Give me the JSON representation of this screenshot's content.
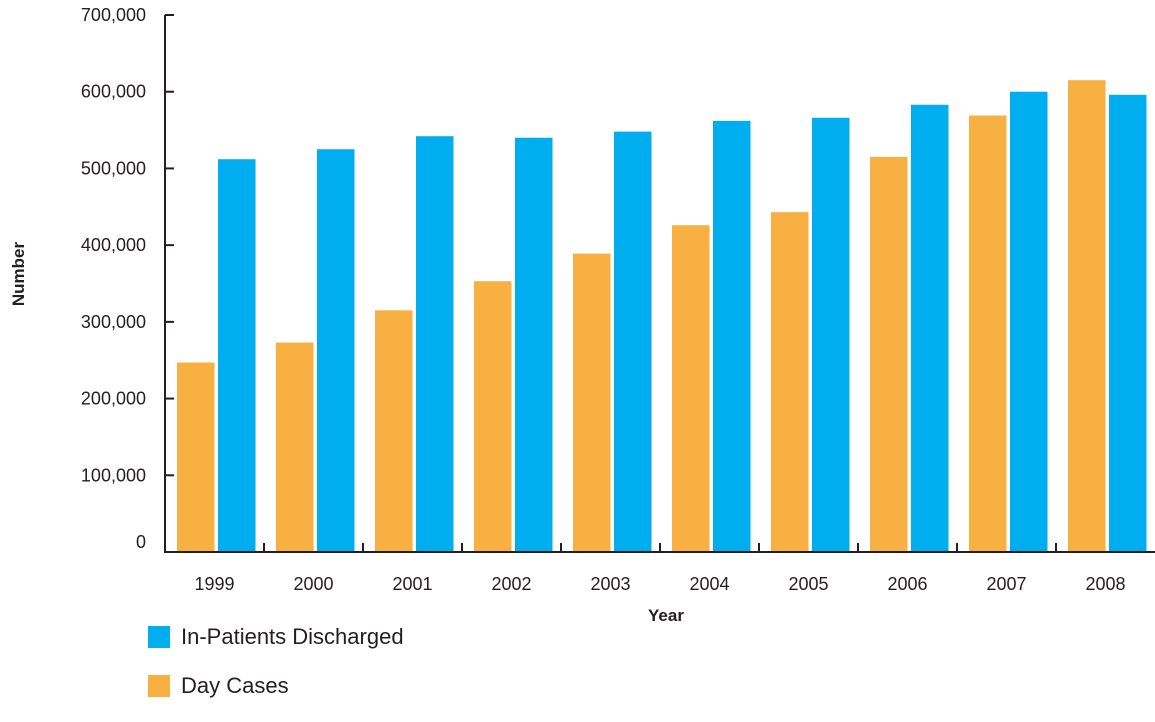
{
  "chart_data": {
    "type": "bar",
    "categories": [
      "1999",
      "2000",
      "2001",
      "2002",
      "2003",
      "2004",
      "2005",
      "2006",
      "2007",
      "2008"
    ],
    "series": [
      {
        "name": "Day Cases",
        "color": "#f9b042",
        "values": [
          247000,
          273000,
          315000,
          353000,
          389000,
          426000,
          443000,
          515000,
          569000,
          615000
        ]
      },
      {
        "name": "In-Patients Discharged",
        "color": "#00aeef",
        "values": [
          512000,
          525000,
          542000,
          540000,
          548000,
          562000,
          566000,
          583000,
          600000,
          596000
        ]
      }
    ],
    "xlabel": "Year",
    "ylabel": "Number",
    "ylim": [
      0,
      700000
    ],
    "yticks": [
      0,
      100000,
      200000,
      300000,
      400000,
      500000,
      600000,
      700000
    ],
    "ytick_labels": [
      "0",
      "100,000",
      "200,000",
      "300,000",
      "400,000",
      "500,000",
      "600,000",
      "700,000"
    ],
    "grid": false,
    "legend_position": "bottom-left"
  },
  "legend": [
    {
      "label": "In-Patients Discharged",
      "color": "#00aeef"
    },
    {
      "label": "Day Cases",
      "color": "#f9b042"
    }
  ]
}
